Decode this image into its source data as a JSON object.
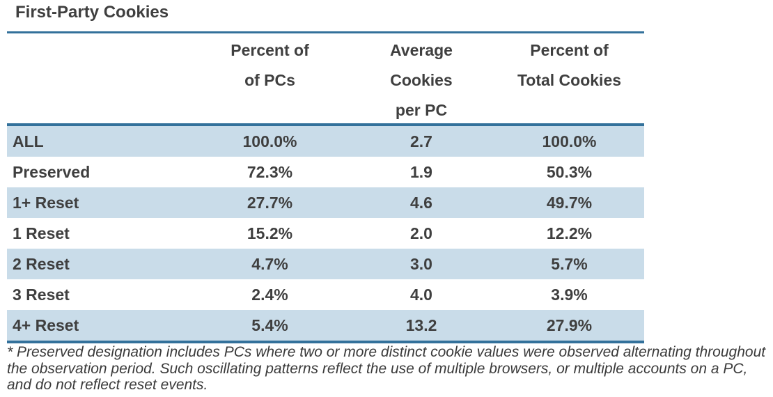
{
  "title": "First-Party Cookies",
  "table": {
    "col_headers": {
      "pct_pcs": [
        "Percent of",
        "of PCs"
      ],
      "avg_cookies": [
        "Average",
        "Cookies",
        "per PC"
      ],
      "pct_total": [
        "Percent of",
        "Total Cookies"
      ]
    },
    "rows": [
      {
        "label": "ALL",
        "pct_pcs": "100.0%",
        "avg_cookies": "2.7",
        "pct_total": "100.0%"
      },
      {
        "label": "Preserved",
        "pct_pcs": "72.3%",
        "avg_cookies": "1.9",
        "pct_total": "50.3%"
      },
      {
        "label": "1+ Reset",
        "pct_pcs": "27.7%",
        "avg_cookies": "4.6",
        "pct_total": "49.7%"
      },
      {
        "label": "1 Reset",
        "pct_pcs": "15.2%",
        "avg_cookies": "2.0",
        "pct_total": "12.2%"
      },
      {
        "label": "2 Reset",
        "pct_pcs": "4.7%",
        "avg_cookies": "3.0",
        "pct_total": "5.7%"
      },
      {
        "label": "3 Reset",
        "pct_pcs": "2.4%",
        "avg_cookies": "4.0",
        "pct_total": "3.9%"
      },
      {
        "label": "4+ Reset",
        "pct_pcs": "5.4%",
        "avg_cookies": "13.2",
        "pct_total": "27.9%"
      }
    ]
  },
  "footnote_lines": [
    "* Preserved designation includes PCs where two or more distinct cookie values were observed alternating throughout",
    "the observation period. Such oscillating patterns reflect the use of multiple browsers, or multiple accounts on a PC,",
    "and do not reflect reset events."
  ],
  "colors": {
    "accent_blue": "#33719B",
    "row_highlight_blue": "#C9DCE9",
    "text_dark_gray": "#3F3F3F"
  }
}
